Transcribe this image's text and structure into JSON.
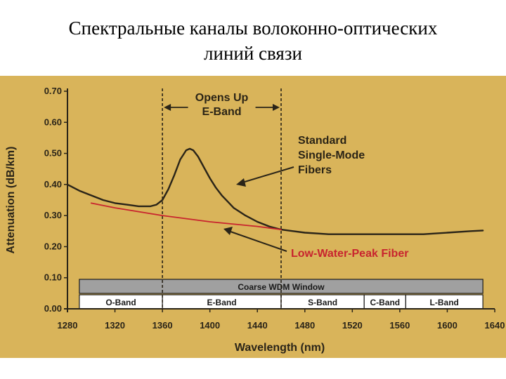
{
  "slide": {
    "title_line1": "Спектральные каналы волоконно-оптических",
    "title_line2": "линий связи"
  },
  "colors": {
    "background": "#d9b45a",
    "standard_fiber": "#2a2418",
    "low_water_peak": "#c8242e",
    "low_water_peak_label": "#c8242e",
    "cwdm_window": "#a0a0a0"
  },
  "chart_data": {
    "type": "line",
    "xlabel": "Wavelength (nm)",
    "ylabel": "Attenuation (dB/km)",
    "xlim": [
      1280,
      1640
    ],
    "ylim": [
      0.0,
      0.7
    ],
    "xticks": [
      "1280",
      "1320",
      "1360",
      "1400",
      "1440",
      "1480",
      "1520",
      "1560",
      "1600",
      "1640"
    ],
    "yticks": [
      "0.00",
      "0.10",
      "0.20",
      "0.30",
      "0.40",
      "0.50",
      "0.60",
      "0.70"
    ],
    "grid": false,
    "series": [
      {
        "name": "Standard Single-Mode Fibers",
        "label_lines": [
          "Standard",
          "Single-Mode",
          "Fibers"
        ],
        "x": [
          1280,
          1290,
          1300,
          1310,
          1320,
          1330,
          1340,
          1350,
          1355,
          1360,
          1365,
          1370,
          1375,
          1380,
          1383,
          1386,
          1390,
          1395,
          1400,
          1405,
          1410,
          1415,
          1420,
          1430,
          1440,
          1450,
          1460,
          1470,
          1480,
          1500,
          1520,
          1540,
          1560,
          1580,
          1600,
          1620,
          1630
        ],
        "y": [
          0.4,
          0.38,
          0.365,
          0.35,
          0.34,
          0.335,
          0.33,
          0.33,
          0.335,
          0.35,
          0.385,
          0.43,
          0.48,
          0.51,
          0.515,
          0.51,
          0.49,
          0.455,
          0.42,
          0.39,
          0.365,
          0.345,
          0.325,
          0.3,
          0.28,
          0.265,
          0.255,
          0.25,
          0.245,
          0.24,
          0.24,
          0.24,
          0.24,
          0.24,
          0.245,
          0.25,
          0.252
        ]
      },
      {
        "name": "Low-Water-Peak Fiber",
        "label_lines": [
          "Low-Water-Peak Fiber"
        ],
        "x": [
          1300,
          1320,
          1360,
          1400,
          1440,
          1460
        ],
        "y": [
          0.34,
          0.325,
          0.3,
          0.28,
          0.265,
          0.255
        ]
      }
    ],
    "annotations": {
      "eband_opening": {
        "lines": [
          "Opens Up",
          "E-Band"
        ],
        "x_range": [
          1360,
          1460
        ]
      },
      "cwdm_window": {
        "label": "Coarse WDM Window",
        "x_range": [
          1290,
          1630
        ]
      }
    },
    "bands": [
      {
        "label": "O-Band",
        "from": 1290,
        "to": 1360
      },
      {
        "label": "E-Band",
        "from": 1360,
        "to": 1460
      },
      {
        "label": "S-Band",
        "from": 1460,
        "to": 1530
      },
      {
        "label": "C-Band",
        "from": 1530,
        "to": 1565
      },
      {
        "label": "L-Band",
        "from": 1565,
        "to": 1630
      }
    ]
  }
}
